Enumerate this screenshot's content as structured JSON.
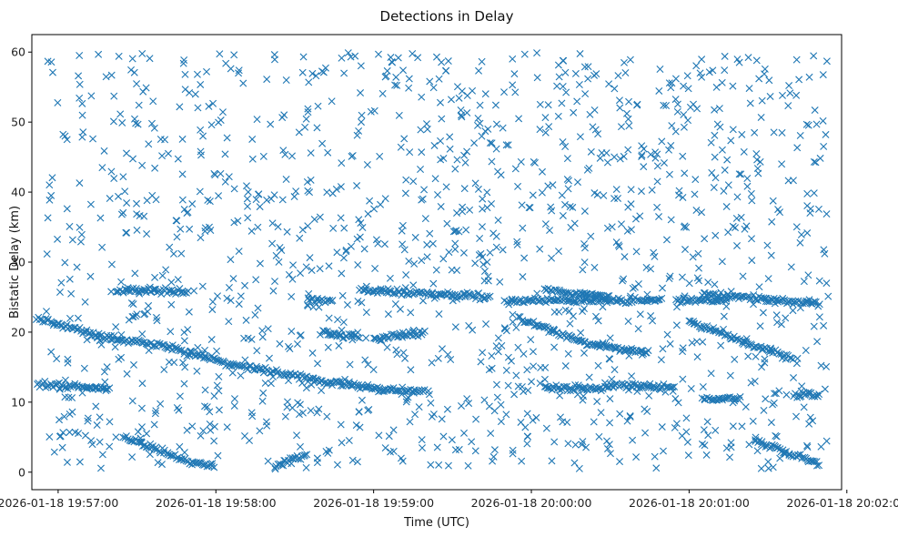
{
  "chart_data": {
    "type": "scatter",
    "title": "Detections in Delay",
    "xlabel": "Time (UTC)",
    "ylabel": "Bistatic Delay (km)",
    "marker": "x",
    "color": "#1f77b4",
    "grid": false,
    "legend": "none",
    "x_axis": {
      "kind": "time",
      "range": [
        "2026-01-18 19:56:50",
        "2026-01-18 20:01:58"
      ],
      "ticks": [
        "2026-01-18 19:57:00",
        "2026-01-18 19:58:00",
        "2026-01-18 19:59:00",
        "2026-01-18 20:00:00",
        "2026-01-18 20:01:00",
        "2026-01-18 20:02:00"
      ]
    },
    "y_axis": {
      "range": [
        -2.5,
        62.5
      ],
      "ticks": [
        0,
        10,
        20,
        30,
        40,
        50,
        60
      ]
    },
    "tracks": [
      {
        "points": [
          [
            "2026-01-18 19:56:52",
            22.0
          ],
          [
            "2026-01-18 19:57:15",
            19.5
          ],
          [
            "2026-01-18 19:57:40",
            18.0
          ],
          [
            "2026-01-18 19:58:05",
            15.5
          ],
          [
            "2026-01-18 19:58:40",
            13.0
          ],
          [
            "2026-01-18 19:59:00",
            12.0
          ],
          [
            "2026-01-18 19:59:20",
            11.5
          ]
        ]
      },
      {
        "points": [
          [
            "2026-01-18 19:56:52",
            12.5
          ],
          [
            "2026-01-18 19:57:20",
            12.0
          ]
        ]
      },
      {
        "points": [
          [
            "2026-01-18 19:57:25",
            5.0
          ],
          [
            "2026-01-18 19:57:50",
            1.5
          ],
          [
            "2026-01-18 19:58:00",
            0.8
          ]
        ]
      },
      {
        "points": [
          [
            "2026-01-18 19:57:22",
            26.0
          ],
          [
            "2026-01-18 19:57:50",
            25.8
          ]
        ]
      },
      {
        "points": [
          [
            "2026-01-18 19:58:22",
            0.8
          ],
          [
            "2026-01-18 19:58:35",
            2.5
          ]
        ]
      },
      {
        "points": [
          [
            "2026-01-18 19:58:35",
            24.5
          ],
          [
            "2026-01-18 19:58:45",
            24.5
          ]
        ]
      },
      {
        "points": [
          [
            "2026-01-18 19:58:40",
            20.0
          ],
          [
            "2026-01-18 19:58:55",
            19.2
          ]
        ]
      },
      {
        "points": [
          [
            "2026-01-18 19:58:55",
            26.0
          ],
          [
            "2026-01-18 19:59:45",
            25.0
          ]
        ]
      },
      {
        "points": [
          [
            "2026-01-18 19:59:00",
            19.0
          ],
          [
            "2026-01-18 19:59:20",
            20.0
          ]
        ]
      },
      {
        "points": [
          [
            "2026-01-18 19:59:50",
            24.5
          ],
          [
            "2026-01-18 20:00:50",
            24.5
          ]
        ]
      },
      {
        "points": [
          [
            "2026-01-18 19:59:55",
            22.0
          ],
          [
            "2026-01-18 20:00:20",
            18.5
          ],
          [
            "2026-01-18 20:00:45",
            17.0
          ]
        ]
      },
      {
        "points": [
          [
            "2026-01-18 20:00:05",
            12.0
          ],
          [
            "2026-01-18 20:00:30",
            12.0
          ]
        ]
      },
      {
        "points": [
          [
            "2026-01-18 20:00:05",
            26.0
          ],
          [
            "2026-01-18 20:00:30",
            25.0
          ]
        ]
      },
      {
        "points": [
          [
            "2026-01-18 20:00:30",
            12.5
          ],
          [
            "2026-01-18 20:00:55",
            12.0
          ]
        ]
      },
      {
        "points": [
          [
            "2026-01-18 20:00:55",
            24.5
          ],
          [
            "2026-01-18 20:01:15",
            24.5
          ]
        ]
      },
      {
        "points": [
          [
            "2026-01-18 20:01:00",
            21.5
          ],
          [
            "2026-01-18 20:01:40",
            16.0
          ]
        ]
      },
      {
        "points": [
          [
            "2026-01-18 20:01:05",
            25.5
          ],
          [
            "2026-01-18 20:01:50",
            24.0
          ]
        ]
      },
      {
        "points": [
          [
            "2026-01-18 20:01:05",
            10.5
          ],
          [
            "2026-01-18 20:01:20",
            10.5
          ]
        ]
      },
      {
        "points": [
          [
            "2026-01-18 20:01:25",
            4.5
          ],
          [
            "2026-01-18 20:01:50",
            1.0
          ]
        ]
      },
      {
        "points": [
          [
            "2026-01-18 20:01:40",
            11.0
          ],
          [
            "2026-01-18 20:01:50",
            11.0
          ]
        ]
      }
    ],
    "clutter": {
      "count": 1400,
      "t_range": [
        "2026-01-18 19:56:55",
        "2026-01-18 20:01:53"
      ],
      "delay_range": [
        0.5,
        60.0
      ]
    }
  }
}
